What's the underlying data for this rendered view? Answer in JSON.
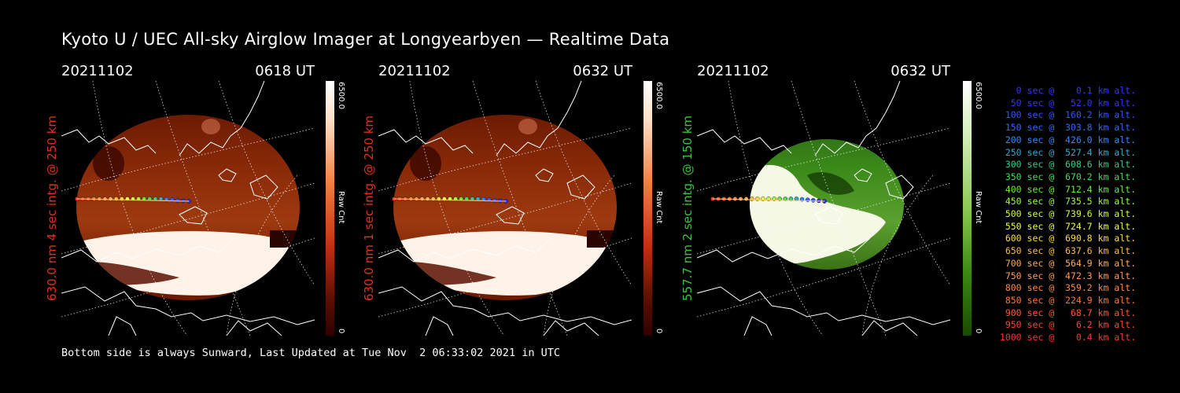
{
  "title": "Kyoto U / UEC All-sky Airglow Imager at Longyearbyen — Realtime Data",
  "footer": "Bottom side is always Sunward, Last Updated at Tue Nov  2 06:33:02 2021 in UTC",
  "colors": {
    "red": "#e0301e",
    "green": "#3cc43c"
  },
  "panels": [
    {
      "date": "20211102",
      "time": "0618 UT",
      "ylabel": "630.0 nm 4 sec intg. @ 250 km",
      "cbar_max": "6500.0",
      "cbar_unit": "Raw Cnt",
      "cbar_min": "0",
      "scheme": "red",
      "icon": "map-icon"
    },
    {
      "date": "20211102",
      "time": "0632 UT",
      "ylabel": "630.0 nm 1 sec intg. @ 250 km",
      "cbar_max": "6500.0",
      "cbar_unit": "Raw Cnt",
      "cbar_min": "0",
      "scheme": "red",
      "icon": "map-icon"
    },
    {
      "date": "20211102",
      "time": "0632 UT",
      "ylabel": "557.7 nm 2 sec intg. @ 150 km",
      "cbar_max": "6500.0",
      "cbar_unit": "Raw Cnt",
      "cbar_min": "0",
      "scheme": "green",
      "icon": "map-icon"
    }
  ],
  "legend": [
    {
      "text": "   0 sec @    0.1 km alt.",
      "color": "#3333ff"
    },
    {
      "text": "  50 sec @   52.0 km alt.",
      "color": "#3333ff"
    },
    {
      "text": " 100 sec @  160.2 km alt.",
      "color": "#3355ff"
    },
    {
      "text": " 150 sec @  303.8 km alt.",
      "color": "#3366ff"
    },
    {
      "text": " 200 sec @  426.0 km alt.",
      "color": "#3388ff"
    },
    {
      "text": " 250 sec @  527.4 km alt.",
      "color": "#33aacc"
    },
    {
      "text": " 300 sec @  608.6 km alt.",
      "color": "#33cc88"
    },
    {
      "text": " 350 sec @  670.2 km alt.",
      "color": "#44dd55"
    },
    {
      "text": " 400 sec @  712.4 km alt.",
      "color": "#66ee33"
    },
    {
      "text": " 450 sec @  735.5 km alt.",
      "color": "#99ff33"
    },
    {
      "text": " 500 sec @  739.6 km alt.",
      "color": "#ccff33"
    },
    {
      "text": " 550 sec @  724.7 km alt.",
      "color": "#eeff33"
    },
    {
      "text": " 600 sec @  690.8 km alt.",
      "color": "#ffdd33"
    },
    {
      "text": " 650 sec @  637.6 km alt.",
      "color": "#ffbb44"
    },
    {
      "text": " 700 sec @  564.9 km alt.",
      "color": "#ffaa55"
    },
    {
      "text": " 750 sec @  472.3 km alt.",
      "color": "#ff9955"
    },
    {
      "text": " 800 sec @  359.2 km alt.",
      "color": "#ff8844"
    },
    {
      "text": " 850 sec @  224.9 km alt.",
      "color": "#ff7733"
    },
    {
      "text": " 900 sec @   68.7 km alt.",
      "color": "#ff5533"
    },
    {
      "text": " 950 sec @    6.2 km alt.",
      "color": "#ff4433"
    },
    {
      "text": "1000 sec @    0.4 km alt.",
      "color": "#ff3333"
    }
  ]
}
